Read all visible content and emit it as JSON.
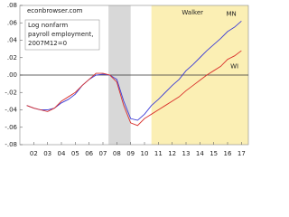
{
  "chart_data": {
    "type": "line",
    "watermark": "econbrowser.com",
    "annotation": [
      "Log nonfarm",
      "payroll employment,",
      "2007M12=0"
    ],
    "shaded_regions": [
      {
        "start": 2007.9,
        "end": 2009.5,
        "color": "#d8d8d8"
      },
      {
        "start": 2011.0,
        "end": 2018.0,
        "color": "#fbefb4",
        "label": "Walker"
      }
    ],
    "x": [
      2002.0,
      2002.5,
      2003.0,
      2003.5,
      2004.0,
      2004.5,
      2005.0,
      2005.5,
      2006.0,
      2006.5,
      2007.0,
      2007.5,
      2008.0,
      2008.5,
      2009.0,
      2009.5,
      2010.0,
      2010.5,
      2011.0,
      2011.5,
      2012.0,
      2012.5,
      2013.0,
      2013.5,
      2014.0,
      2014.5,
      2015.0,
      2015.5,
      2016.0,
      2016.5,
      2017.0,
      2017.5
    ],
    "series": [
      {
        "name": "MN",
        "color": "#3b3bd6",
        "label_at": [
          2016.4,
          0.07
        ],
        "values": [
          -0.035,
          -0.038,
          -0.04,
          -0.04,
          -0.038,
          -0.032,
          -0.028,
          -0.022,
          -0.012,
          -0.005,
          0.0,
          0.001,
          0.0,
          -0.005,
          -0.03,
          -0.05,
          -0.052,
          -0.045,
          -0.035,
          -0.028,
          -0.02,
          -0.012,
          -0.005,
          0.005,
          0.012,
          0.02,
          0.028,
          0.035,
          0.042,
          0.05,
          0.055,
          0.062
        ]
      },
      {
        "name": "WI",
        "color": "#d9302c",
        "label_at": [
          2016.7,
          0.01
        ],
        "values": [
          -0.035,
          -0.038,
          -0.04,
          -0.042,
          -0.038,
          -0.03,
          -0.025,
          -0.02,
          -0.012,
          -0.005,
          0.002,
          0.002,
          0.0,
          -0.008,
          -0.035,
          -0.055,
          -0.058,
          -0.05,
          -0.045,
          -0.04,
          -0.035,
          -0.03,
          -0.025,
          -0.018,
          -0.012,
          -0.006,
          0.0,
          0.005,
          0.01,
          0.018,
          0.022,
          0.028
        ]
      }
    ],
    "xlim": [
      2001.5,
      2018.0
    ],
    "xticks": [
      {
        "value": 2002.5,
        "label": "02"
      },
      {
        "value": 2003.5,
        "label": "03"
      },
      {
        "value": 2004.5,
        "label": "04"
      },
      {
        "value": 2005.5,
        "label": "05"
      },
      {
        "value": 2006.5,
        "label": "06"
      },
      {
        "value": 2007.5,
        "label": "07"
      },
      {
        "value": 2008.5,
        "label": "08"
      },
      {
        "value": 2009.5,
        "label": "09"
      },
      {
        "value": 2010.5,
        "label": "10"
      },
      {
        "value": 2011.5,
        "label": "11"
      },
      {
        "value": 2012.5,
        "label": "12"
      },
      {
        "value": 2013.5,
        "label": "13"
      },
      {
        "value": 2014.5,
        "label": "14"
      },
      {
        "value": 2015.5,
        "label": "15"
      },
      {
        "value": 2016.5,
        "label": "16"
      },
      {
        "value": 2017.5,
        "label": "17"
      }
    ],
    "ylim": [
      -0.08,
      0.08
    ],
    "yticks": [
      {
        "value": 0.08,
        "label": ".08"
      },
      {
        "value": 0.06,
        "label": ".06"
      },
      {
        "value": 0.04,
        "label": ".04"
      },
      {
        "value": 0.02,
        "label": ".02"
      },
      {
        "value": 0,
        "label": ".00"
      },
      {
        "value": -0.02,
        "label": "-.02"
      },
      {
        "value": -0.04,
        "label": "-.04"
      },
      {
        "value": -0.06,
        "label": "-.06"
      },
      {
        "value": -0.08,
        "label": "-.08"
      }
    ]
  }
}
